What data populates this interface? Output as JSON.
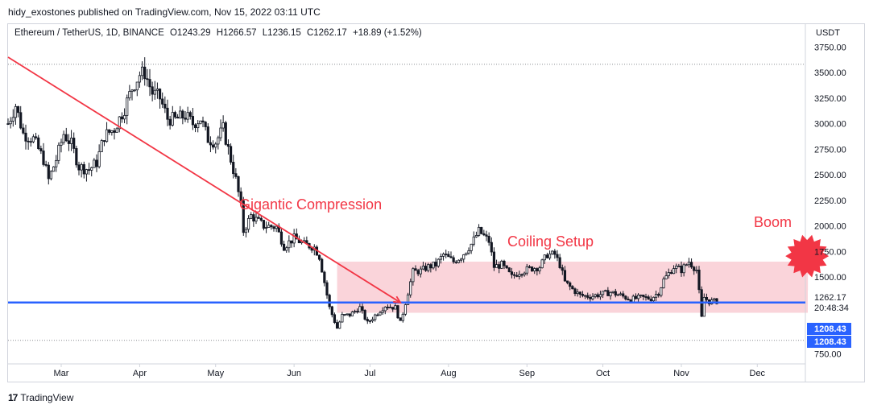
{
  "header": {
    "published": "hidy_exostones published on TradingView.com, Nov 15, 2022 03:11 UTC"
  },
  "symbol": {
    "name": "Ethereum / TetherUS, 1D, BINANCE",
    "open": "O1243.29",
    "high": "H1266.57",
    "low": "L1236.15",
    "close": "C1262.17",
    "change": "+18.89 (+1.52%)"
  },
  "footer": {
    "brand": "TradingView",
    "logo": "17"
  },
  "colors": {
    "up": "#131722",
    "down": "#131722",
    "trendline": "#f23645",
    "support": "#2962ff",
    "zone": "#f9cdd3",
    "annotation": "#f23645",
    "burst": "#f23645"
  },
  "chart_data": {
    "type": "candlestick",
    "y_unit": "USDT",
    "ylim": [
      650,
      3800
    ],
    "y_ticks": [
      "3750.00",
      "3500.00",
      "3250.00",
      "3000.00",
      "2750.00",
      "2500.00",
      "2250.00",
      "2000.00",
      "1750.00",
      "1500.00",
      "750.00"
    ],
    "x_ticks": [
      "Mar",
      "Apr",
      "May",
      "Jun",
      "Jul",
      "Aug",
      "Sep",
      "Oct",
      "Nov",
      "Dec"
    ],
    "x_range": [
      "2022-02-08",
      "2022-12-20"
    ],
    "last_price": "1262.17",
    "countdown": "20:48:34",
    "price_labels": [
      "1208.43",
      "1208.43"
    ],
    "close_path": [
      [
        "2022-02-08",
        3000
      ],
      [
        "2022-02-11",
        3180
      ],
      [
        "2022-02-14",
        2900
      ],
      [
        "2022-02-18",
        2850
      ],
      [
        "2022-02-22",
        2650
      ],
      [
        "2022-02-24",
        2450
      ],
      [
        "2022-02-27",
        2650
      ],
      [
        "2022-03-02",
        2900
      ],
      [
        "2022-03-05",
        2800
      ],
      [
        "2022-03-08",
        2580
      ],
      [
        "2022-03-12",
        2550
      ],
      [
        "2022-03-15",
        2620
      ],
      [
        "2022-03-18",
        2880
      ],
      [
        "2022-03-22",
        2950
      ],
      [
        "2022-03-26",
        3150
      ],
      [
        "2022-03-29",
        3350
      ],
      [
        "2022-04-01",
        3480
      ],
      [
        "2022-04-03",
        3500
      ],
      [
        "2022-04-06",
        3300
      ],
      [
        "2022-04-09",
        3250
      ],
      [
        "2022-04-12",
        3050
      ],
      [
        "2022-04-15",
        3040
      ],
      [
        "2022-04-19",
        3080
      ],
      [
        "2022-04-22",
        3000
      ],
      [
        "2022-04-25",
        3050
      ],
      [
        "2022-04-28",
        2850
      ],
      [
        "2022-05-01",
        2820
      ],
      [
        "2022-05-04",
        2950
      ],
      [
        "2022-05-06",
        2750
      ],
      [
        "2022-05-09",
        2450
      ],
      [
        "2022-05-11",
        2200
      ],
      [
        "2022-05-12",
        1950
      ],
      [
        "2022-05-15",
        2100
      ],
      [
        "2022-05-20",
        2000
      ],
      [
        "2022-05-25",
        1990
      ],
      [
        "2022-05-28",
        1800
      ],
      [
        "2022-06-01",
        1880
      ],
      [
        "2022-06-05",
        1820
      ],
      [
        "2022-06-09",
        1790
      ],
      [
        "2022-06-11",
        1700
      ],
      [
        "2022-06-13",
        1450
      ],
      [
        "2022-06-15",
        1200
      ],
      [
        "2022-06-18",
        1000
      ],
      [
        "2022-06-20",
        1120
      ],
      [
        "2022-06-23",
        1130
      ],
      [
        "2022-06-27",
        1200
      ],
      [
        "2022-06-30",
        1050
      ],
      [
        "2022-07-04",
        1150
      ],
      [
        "2022-07-07",
        1220
      ],
      [
        "2022-07-11",
        1200
      ],
      [
        "2022-07-13",
        1050
      ],
      [
        "2022-07-15",
        1250
      ],
      [
        "2022-07-18",
        1550
      ],
      [
        "2022-07-21",
        1560
      ],
      [
        "2022-07-24",
        1600
      ],
      [
        "2022-07-27",
        1620
      ],
      [
        "2022-07-30",
        1720
      ],
      [
        "2022-08-03",
        1650
      ],
      [
        "2022-08-06",
        1700
      ],
      [
        "2022-08-10",
        1820
      ],
      [
        "2022-08-13",
        1950
      ],
      [
        "2022-08-15",
        1900
      ],
      [
        "2022-08-17",
        1850
      ],
      [
        "2022-08-19",
        1600
      ],
      [
        "2022-08-22",
        1620
      ],
      [
        "2022-08-26",
        1500
      ],
      [
        "2022-08-29",
        1550
      ],
      [
        "2022-09-02",
        1580
      ],
      [
        "2022-09-06",
        1600
      ],
      [
        "2022-09-09",
        1720
      ],
      [
        "2022-09-12",
        1720
      ],
      [
        "2022-09-14",
        1620
      ],
      [
        "2022-09-16",
        1450
      ],
      [
        "2022-09-19",
        1380
      ],
      [
        "2022-09-22",
        1320
      ],
      [
        "2022-09-26",
        1310
      ],
      [
        "2022-09-30",
        1330
      ],
      [
        "2022-10-04",
        1350
      ],
      [
        "2022-10-08",
        1320
      ],
      [
        "2022-10-12",
        1280
      ],
      [
        "2022-10-16",
        1300
      ],
      [
        "2022-10-20",
        1290
      ],
      [
        "2022-10-23",
        1350
      ],
      [
        "2022-10-25",
        1470
      ],
      [
        "2022-10-29",
        1600
      ],
      [
        "2022-11-01",
        1570
      ],
      [
        "2022-11-04",
        1650
      ],
      [
        "2022-11-07",
        1570
      ],
      [
        "2022-11-08",
        1350
      ],
      [
        "2022-11-09",
        1100
      ],
      [
        "2022-11-10",
        1300
      ],
      [
        "2022-11-12",
        1260
      ],
      [
        "2022-11-15",
        1262
      ]
    ],
    "annotations": {
      "compression_label": "Gigantic Compression",
      "coiling_label": "Coiling Setup",
      "boom_label": "Boom",
      "trendline": [
        [
          "2022-02-08",
          3650
        ],
        [
          "2022-07-13",
          1250
        ]
      ],
      "support_level": 1250,
      "zone": {
        "start": "2022-06-18",
        "end": "2022-12-21",
        "low": 1150,
        "high": 1650
      },
      "dotted_levels": [
        3580,
        880
      ],
      "burst_at": [
        "2022-12-21",
        1720
      ]
    }
  }
}
